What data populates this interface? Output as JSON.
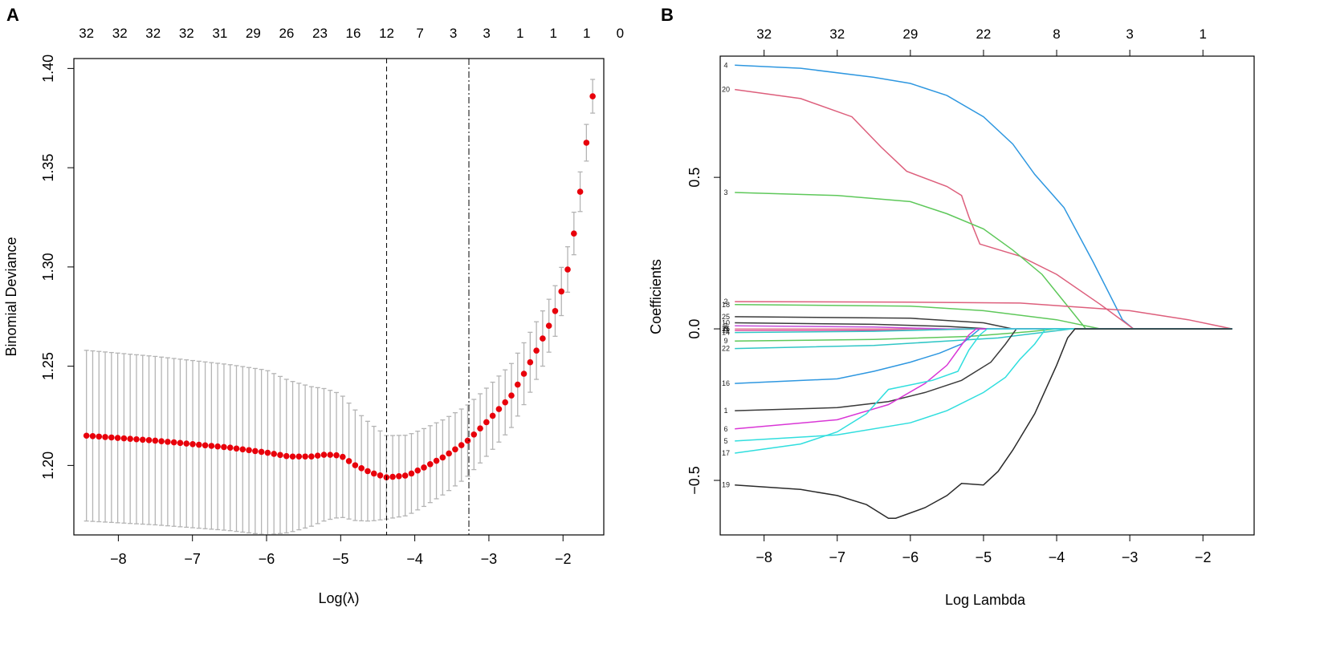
{
  "panel_a": {
    "letter": "A",
    "chart_data": {
      "type": "scatter",
      "title": "",
      "xlabel": "Log(λ)",
      "ylabel": "Binomial Deviance",
      "xlim": [
        -8.6,
        -1.45
      ],
      "ylim": [
        1.165,
        1.405
      ],
      "x_ticks": [
        -8,
        -7,
        -6,
        -5,
        -4,
        -3,
        -2
      ],
      "x_tick_labels": [
        "−8",
        "−7",
        "−6",
        "−5",
        "−4",
        "−3",
        "−2"
      ],
      "y_ticks": [
        1.2,
        1.25,
        1.3,
        1.35,
        1.4
      ],
      "y_tick_labels": [
        "1.20",
        "1.25",
        "1.30",
        "1.35",
        "1.40"
      ],
      "top_axis_positions": [
        -8.43,
        -7.98,
        -7.53,
        -7.08,
        -6.63,
        -6.18,
        -5.73,
        -5.28,
        -4.83,
        -4.38,
        -3.93,
        -3.48,
        -3.03,
        -2.58,
        -2.13,
        -1.68,
        -1.23
      ],
      "top_axis_labels": [
        "32",
        "32",
        "32",
        "32",
        "31",
        "29",
        "26",
        "23",
        "16",
        "12",
        "7",
        "3",
        "3",
        "1",
        "1",
        "1",
        "0"
      ],
      "vlines": [
        {
          "name": "lambda.min",
          "x": -4.38,
          "style": "dashed"
        },
        {
          "name": "lambda.1se",
          "x": -3.27,
          "style": "dashdot"
        }
      ],
      "point_color": "#e8000b",
      "errorbar_color": "#b4b4b4",
      "n_points": 82,
      "x_range": [
        -8.43,
        -1.6
      ],
      "mean_curve": [
        [
          -8.43,
          1.215
        ],
        [
          -7.5,
          1.2125
        ],
        [
          -6.5,
          1.209
        ],
        [
          -6.0,
          1.2065
        ],
        [
          -5.7,
          1.2045
        ],
        [
          -5.4,
          1.2045
        ],
        [
          -5.2,
          1.2055
        ],
        [
          -5.0,
          1.205
        ],
        [
          -4.8,
          1.2
        ],
        [
          -4.6,
          1.1965
        ],
        [
          -4.38,
          1.194
        ],
        [
          -4.1,
          1.195
        ],
        [
          -3.9,
          1.1985
        ],
        [
          -3.6,
          1.2045
        ],
        [
          -3.3,
          1.212
        ],
        [
          -3.0,
          1.223
        ],
        [
          -2.7,
          1.235
        ],
        [
          -2.5,
          1.248
        ],
        [
          -2.3,
          1.262
        ],
        [
          -2.13,
          1.275
        ],
        [
          -1.95,
          1.296
        ],
        [
          -1.85,
          1.3175
        ],
        [
          -1.77,
          1.3375
        ],
        [
          -1.69,
          1.361
        ],
        [
          -1.6,
          1.386
        ]
      ],
      "se_curve": [
        [
          -8.43,
          0.043
        ],
        [
          -6.0,
          0.0415
        ],
        [
          -5.0,
          0.031
        ],
        [
          -4.38,
          0.021
        ],
        [
          -3.3,
          0.018
        ],
        [
          -2.5,
          0.0155
        ],
        [
          -2.0,
          0.012
        ],
        [
          -1.6,
          0.0085
        ]
      ]
    }
  },
  "panel_b": {
    "letter": "B",
    "chart_data": {
      "type": "line",
      "title": "",
      "xlabel": "Log Lambda",
      "ylabel": "Coefficients",
      "xlim": [
        -8.6,
        -1.3
      ],
      "ylim": [
        -0.68,
        0.9
      ],
      "x_ticks": [
        -8,
        -7,
        -6,
        -5,
        -4,
        -3,
        -2
      ],
      "x_tick_labels": [
        "−8",
        "−7",
        "−6",
        "−5",
        "−4",
        "−3",
        "−2"
      ],
      "y_ticks": [
        -0.5,
        0.0,
        0.5
      ],
      "y_tick_labels": [
        "−0.5",
        "0.0",
        "0.5"
      ],
      "top_axis_positions": [
        -8,
        -7,
        -6,
        -5,
        -4,
        -3,
        -2
      ],
      "top_axis_labels": [
        "32",
        "32",
        "29",
        "22",
        "8",
        "3",
        "1"
      ],
      "series": [
        {
          "name": "4",
          "label": "4",
          "color": "#2e97e0",
          "points": [
            [
              -8.4,
              0.87
            ],
            [
              -7.5,
              0.86
            ],
            [
              -6.5,
              0.83
            ],
            [
              -6.0,
              0.81
            ],
            [
              -5.5,
              0.77
            ],
            [
              -5.0,
              0.7
            ],
            [
              -4.6,
              0.61
            ],
            [
              -4.3,
              0.51
            ],
            [
              -3.9,
              0.4
            ],
            [
              -3.5,
              0.22
            ],
            [
              -3.1,
              0.03
            ],
            [
              -2.95,
              0.0
            ]
          ]
        },
        {
          "name": "20",
          "label": "20",
          "color": "#dd5f7c",
          "points": [
            [
              -8.4,
              0.79
            ],
            [
              -7.5,
              0.76
            ],
            [
              -6.8,
              0.7
            ],
            [
              -6.4,
              0.6
            ],
            [
              -6.05,
              0.52
            ],
            [
              -5.5,
              0.47
            ],
            [
              -5.3,
              0.44
            ],
            [
              -5.2,
              0.37
            ],
            [
              -5.05,
              0.28
            ],
            [
              -4.5,
              0.24
            ],
            [
              -4.0,
              0.18
            ],
            [
              -3.4,
              0.08
            ],
            [
              -2.95,
              0.0
            ]
          ]
        },
        {
          "name": "3",
          "label": "3",
          "color": "#5ec85a",
          "points": [
            [
              -8.4,
              0.45
            ],
            [
              -7.0,
              0.44
            ],
            [
              -6.0,
              0.42
            ],
            [
              -5.5,
              0.38
            ],
            [
              -5.0,
              0.33
            ],
            [
              -4.6,
              0.26
            ],
            [
              -4.2,
              0.18
            ],
            [
              -3.9,
              0.09
            ],
            [
              -3.6,
              0.0
            ]
          ]
        },
        {
          "name": "2",
          "label": "2",
          "color": "#dd5f7c",
          "points": [
            [
              -8.4,
              0.09
            ],
            [
              -6.0,
              0.088
            ],
            [
              -4.5,
              0.085
            ],
            [
              -3.0,
              0.06
            ],
            [
              -2.2,
              0.03
            ],
            [
              -1.6,
              0.0
            ]
          ]
        },
        {
          "name": "18",
          "label": "18",
          "color": "#5ec85a",
          "points": [
            [
              -8.4,
              0.08
            ],
            [
              -6.0,
              0.075
            ],
            [
              -5.0,
              0.06
            ],
            [
              -4.0,
              0.03
            ],
            [
              -3.4,
              0.0
            ]
          ]
        },
        {
          "name": "25",
          "label": "25",
          "color": "#3b3b3b",
          "points": [
            [
              -8.4,
              0.04
            ],
            [
              -6.0,
              0.035
            ],
            [
              -5.0,
              0.02
            ],
            [
              -4.6,
              0.0
            ]
          ]
        },
        {
          "name": "10",
          "label": "10",
          "color": "#3b3b3b",
          "points": [
            [
              -8.4,
              0.02
            ],
            [
              -6.5,
              0.015
            ],
            [
              -5.5,
              0.008
            ],
            [
              -4.9,
              0.0
            ]
          ]
        },
        {
          "name": "7",
          "label": "7",
          "color": "#c44ddc",
          "points": [
            [
              -8.4,
              0.01
            ],
            [
              -6.5,
              0.006
            ],
            [
              -5.5,
              0.0
            ]
          ]
        },
        {
          "name": "12",
          "label": "12",
          "color": "#e14c9c",
          "points": [
            [
              -8.4,
              -0.005
            ],
            [
              -6.0,
              -0.004
            ],
            [
              -5.0,
              0.0
            ]
          ]
        },
        {
          "name": "14",
          "label": "14",
          "color": "#30c6c6",
          "points": [
            [
              -8.4,
              -0.012
            ],
            [
              -6.5,
              -0.008
            ],
            [
              -5.2,
              0.0
            ]
          ]
        },
        {
          "name": "9",
          "label": "9",
          "color": "#5ec85a",
          "points": [
            [
              -8.4,
              -0.04
            ],
            [
              -6.5,
              -0.035
            ],
            [
              -5.2,
              -0.025
            ],
            [
              -4.4,
              -0.01
            ],
            [
              -4.0,
              0.0
            ]
          ]
        },
        {
          "name": "22",
          "label": "22",
          "color": "#30c6c6",
          "points": [
            [
              -8.4,
              -0.065
            ],
            [
              -6.5,
              -0.055
            ],
            [
              -5.5,
              -0.04
            ],
            [
              -4.8,
              -0.03
            ],
            [
              -4.3,
              -0.015
            ],
            [
              -3.8,
              0.0
            ]
          ]
        },
        {
          "name": "16",
          "label": "16",
          "color": "#2e97e0",
          "points": [
            [
              -8.4,
              -0.18
            ],
            [
              -7.0,
              -0.165
            ],
            [
              -6.5,
              -0.14
            ],
            [
              -6.0,
              -0.11
            ],
            [
              -5.6,
              -0.08
            ],
            [
              -5.3,
              -0.05
            ],
            [
              -5.15,
              -0.02
            ],
            [
              -5.05,
              0.0
            ]
          ]
        },
        {
          "name": "1",
          "label": "1",
          "color": "#3b3b3b",
          "points": [
            [
              -8.4,
              -0.27
            ],
            [
              -7.0,
              -0.26
            ],
            [
              -6.3,
              -0.24
            ],
            [
              -5.8,
              -0.21
            ],
            [
              -5.3,
              -0.17
            ],
            [
              -4.9,
              -0.11
            ],
            [
              -4.7,
              -0.05
            ],
            [
              -4.55,
              0.0
            ]
          ]
        },
        {
          "name": "6",
          "label": "6",
          "color": "#d936d6",
          "points": [
            [
              -8.4,
              -0.33
            ],
            [
              -7.0,
              -0.3
            ],
            [
              -6.3,
              -0.25
            ],
            [
              -5.8,
              -0.18
            ],
            [
              -5.5,
              -0.12
            ],
            [
              -5.35,
              -0.07
            ],
            [
              -5.2,
              -0.02
            ],
            [
              -5.1,
              0.0
            ]
          ]
        },
        {
          "name": "5",
          "label": "5",
          "color": "#30dede",
          "points": [
            [
              -8.4,
              -0.37
            ],
            [
              -7.0,
              -0.35
            ],
            [
              -6.0,
              -0.31
            ],
            [
              -5.5,
              -0.27
            ],
            [
              -5.0,
              -0.21
            ],
            [
              -4.7,
              -0.16
            ],
            [
              -4.5,
              -0.1
            ],
            [
              -4.3,
              -0.05
            ],
            [
              -4.15,
              0.0
            ]
          ]
        },
        {
          "name": "17",
          "label": "17",
          "color": "#30dede",
          "points": [
            [
              -8.4,
              -0.41
            ],
            [
              -7.5,
              -0.38
            ],
            [
              -7.0,
              -0.34
            ],
            [
              -6.6,
              -0.28
            ],
            [
              -6.3,
              -0.2
            ],
            [
              -5.7,
              -0.17
            ],
            [
              -5.35,
              -0.14
            ],
            [
              -5.2,
              -0.07
            ],
            [
              -5.05,
              -0.02
            ],
            [
              -4.95,
              0.0
            ]
          ]
        },
        {
          "name": "19",
          "label": "19",
          "color": "#2a2a2a",
          "points": [
            [
              -8.4,
              -0.515
            ],
            [
              -7.5,
              -0.53
            ],
            [
              -7.0,
              -0.55
            ],
            [
              -6.6,
              -0.58
            ],
            [
              -6.3,
              -0.625
            ],
            [
              -6.2,
              -0.625
            ],
            [
              -5.8,
              -0.59
            ],
            [
              -5.5,
              -0.55
            ],
            [
              -5.3,
              -0.51
            ],
            [
              -5.0,
              -0.515
            ],
            [
              -4.8,
              -0.47
            ],
            [
              -4.6,
              -0.4
            ],
            [
              -4.3,
              -0.28
            ],
            [
              -4.0,
              -0.12
            ],
            [
              -3.85,
              -0.03
            ],
            [
              -3.75,
              0.0
            ]
          ]
        }
      ],
      "extra_label_values": [
        {
          "label": "26",
          "value": 0.0
        },
        {
          "label": "11",
          "value": 0.0
        },
        {
          "label": "8",
          "value": 0.0
        }
      ]
    }
  }
}
